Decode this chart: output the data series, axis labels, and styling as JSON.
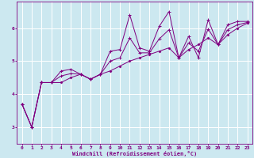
{
  "xlabel": "Windchill (Refroidissement éolien,°C)",
  "bg_color": "#cce8f0",
  "line_color": "#800080",
  "grid_color": "#ffffff",
  "xlim": [
    -0.5,
    23.5
  ],
  "ylim": [
    2.5,
    6.8
  ],
  "xticks": [
    0,
    1,
    2,
    3,
    4,
    5,
    6,
    7,
    8,
    9,
    10,
    11,
    12,
    13,
    14,
    15,
    16,
    17,
    18,
    19,
    20,
    21,
    22,
    23
  ],
  "yticks": [
    3,
    4,
    5,
    6
  ],
  "series0": [
    3.7,
    3.0,
    4.35,
    4.35,
    4.7,
    4.75,
    4.6,
    4.45,
    4.6,
    5.3,
    5.35,
    6.4,
    5.4,
    5.3,
    6.05,
    6.5,
    5.1,
    5.75,
    5.1,
    6.25,
    5.5,
    6.1,
    6.2,
    6.2
  ],
  "series1": [
    3.7,
    3.0,
    4.35,
    4.35,
    4.35,
    4.5,
    4.6,
    4.45,
    4.6,
    4.7,
    4.85,
    5.0,
    5.1,
    5.2,
    5.3,
    5.4,
    5.1,
    5.35,
    5.5,
    5.7,
    5.5,
    5.8,
    6.0,
    6.15
  ],
  "series2": [
    3.7,
    3.0,
    4.35,
    4.35,
    4.55,
    4.62,
    4.6,
    4.45,
    4.6,
    5.0,
    5.1,
    5.7,
    5.25,
    5.25,
    5.67,
    5.95,
    5.1,
    5.55,
    5.3,
    5.97,
    5.5,
    5.95,
    6.1,
    6.17
  ]
}
